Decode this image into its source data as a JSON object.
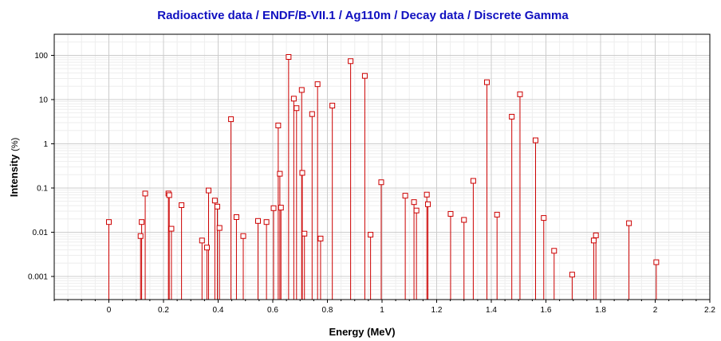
{
  "chart_data": {
    "type": "scatter",
    "title": "Radioactive data / ENDF/B-VII.1 / Ag110m / Decay data / Discrete Gamma",
    "xlabel": "Energy (MeV)",
    "ylabel": "Intensity",
    "ylabel_unit": "(%)",
    "xlim": [
      -0.2,
      2.2
    ],
    "ylim": [
      0.0003,
      300
    ],
    "yscale": "log",
    "grid": true,
    "legend": "none",
    "style": "stem",
    "color": "#cc0000",
    "x_ticks": [
      "0",
      "0.2",
      "0.4",
      "0.6",
      "0.8",
      "1",
      "1.2",
      "1.4",
      "1.6",
      "1.8",
      "2",
      "2.2"
    ],
    "y_ticks": [
      "0.001",
      "0.01",
      "0.1",
      "1",
      "10",
      "100"
    ],
    "points": [
      [
        0.0,
        0.017
      ],
      [
        0.116,
        0.0082
      ],
      [
        0.12,
        0.017
      ],
      [
        0.133,
        0.075
      ],
      [
        0.218,
        0.075
      ],
      [
        0.221,
        0.069
      ],
      [
        0.229,
        0.012
      ],
      [
        0.266,
        0.041
      ],
      [
        0.341,
        0.0065
      ],
      [
        0.359,
        0.0045
      ],
      [
        0.365,
        0.088
      ],
      [
        0.388,
        0.052
      ],
      [
        0.397,
        0.038
      ],
      [
        0.405,
        0.0125
      ],
      [
        0.447,
        3.6
      ],
      [
        0.467,
        0.022
      ],
      [
        0.492,
        0.0082
      ],
      [
        0.546,
        0.018
      ],
      [
        0.577,
        0.017
      ],
      [
        0.603,
        0.035
      ],
      [
        0.62,
        2.6
      ],
      [
        0.626,
        0.21
      ],
      [
        0.63,
        0.036
      ],
      [
        0.658,
        92
      ],
      [
        0.677,
        10.5
      ],
      [
        0.687,
        6.4
      ],
      [
        0.706,
        16.5
      ],
      [
        0.708,
        0.22
      ],
      [
        0.716,
        0.0093
      ],
      [
        0.744,
        4.7
      ],
      [
        0.764,
        22.3
      ],
      [
        0.775,
        0.0072
      ],
      [
        0.818,
        7.3
      ],
      [
        0.885,
        74
      ],
      [
        0.937,
        34.4
      ],
      [
        0.958,
        0.0088
      ],
      [
        0.997,
        0.135
      ],
      [
        1.085,
        0.067
      ],
      [
        1.117,
        0.048
      ],
      [
        1.126,
        0.031
      ],
      [
        1.164,
        0.071
      ],
      [
        1.168,
        0.043
      ],
      [
        1.251,
        0.026
      ],
      [
        1.3,
        0.019
      ],
      [
        1.334,
        0.145
      ],
      [
        1.384,
        24.7
      ],
      [
        1.421,
        0.025
      ],
      [
        1.475,
        4.1
      ],
      [
        1.505,
        13.2
      ],
      [
        1.562,
        1.2
      ],
      [
        1.592,
        0.021
      ],
      [
        1.63,
        0.0038
      ],
      [
        1.696,
        0.0011
      ],
      [
        1.775,
        0.0065
      ],
      [
        1.783,
        0.0085
      ],
      [
        1.904,
        0.016
      ],
      [
        2.004,
        0.0021
      ]
    ]
  }
}
